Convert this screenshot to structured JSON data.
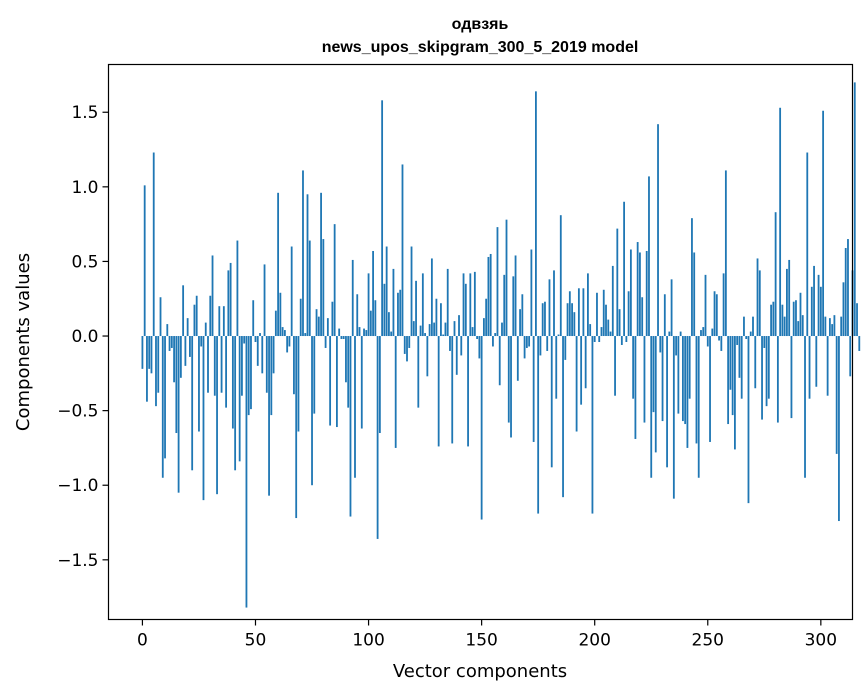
{
  "chart_data": {
    "type": "bar",
    "title_line1": "одвзяь",
    "title_line2": "news_upos_skipgram_300_5_2019 model",
    "xlabel": "Vector components",
    "ylabel": "Components values",
    "xlim": [
      -15,
      314
    ],
    "ylim": [
      -1.9,
      1.82
    ],
    "x_ticks": [
      0,
      50,
      100,
      150,
      200,
      250,
      300
    ],
    "y_ticks": [
      -1.5,
      -1.0,
      -0.5,
      0.0,
      0.5,
      1.0,
      1.5
    ],
    "x_tick_labels": [
      "0",
      "50",
      "100",
      "150",
      "200",
      "250",
      "300"
    ],
    "y_tick_labels": [
      "−1.5",
      "−1.0",
      "−0.5",
      "0.0",
      "0.5",
      "1.0",
      "1.5"
    ],
    "bar_color": "#1f77b4",
    "grid": false,
    "values": [
      -0.22,
      1.01,
      -0.44,
      -0.22,
      -0.25,
      1.23,
      -0.47,
      -0.38,
      0.26,
      -0.95,
      -0.82,
      0.08,
      -0.1,
      -0.08,
      -0.31,
      -0.65,
      -1.05,
      -0.28,
      0.34,
      -0.2,
      0.12,
      -0.14,
      -0.9,
      0.21,
      0.27,
      -0.64,
      -0.07,
      -1.1,
      0.09,
      -0.38,
      0.27,
      0.54,
      -0.4,
      -1.06,
      0.2,
      -0.38,
      0.2,
      -0.48,
      0.44,
      0.49,
      -0.62,
      -0.9,
      0.64,
      -0.84,
      -0.4,
      -0.05,
      -1.82,
      -0.53,
      -0.49,
      0.24,
      -0.04,
      -0.2,
      0.02,
      -0.25,
      0.48,
      -0.38,
      -1.07,
      -0.53,
      -0.25,
      0.17,
      0.96,
      0.29,
      0.06,
      0.04,
      -0.11,
      -0.07,
      0.6,
      -0.39,
      -1.22,
      -0.64,
      0.25,
      1.11,
      0.02,
      0.95,
      0.64,
      -1.0,
      -0.52,
      0.18,
      0.13,
      0.96,
      0.65,
      -0.08,
      0.12,
      -0.6,
      0.23,
      0.75,
      -0.61,
      0.05,
      -0.02,
      -0.02,
      -0.31,
      -0.48,
      -1.21,
      0.51,
      -0.95,
      0.28,
      0.06,
      -0.62,
      0.05,
      0.04,
      0.42,
      0.17,
      0.57,
      0.24,
      -1.36,
      -0.65,
      1.58,
      0.35,
      0.6,
      0.16,
      0.03,
      0.45,
      -0.75,
      0.29,
      0.31,
      1.15,
      -0.12,
      -0.17,
      -0.08,
      0.6,
      0.1,
      0.37,
      -0.48,
      0.07,
      0.42,
      0.02,
      -0.27,
      0.08,
      0.52,
      0.09,
      0.25,
      -0.74,
      0.22,
      0.01,
      0.09,
      0.45,
      -0.1,
      -0.72,
      0.1,
      -0.26,
      0.14,
      -0.13,
      0.42,
      0.35,
      -0.74,
      0.42,
      0.06,
      0.43,
      -0.02,
      -0.15,
      -1.23,
      0.12,
      0.25,
      0.53,
      0.55,
      -0.07,
      0.02,
      0.73,
      -0.33,
      0.09,
      0.41,
      0.78,
      -0.58,
      -0.68,
      0.4,
      0.54,
      -0.3,
      0.18,
      0.28,
      -0.15,
      -0.08,
      -0.07,
      0.58,
      -0.71,
      1.64,
      -1.19,
      -0.13,
      0.22,
      0.23,
      -0.1,
      0.38,
      -0.88,
      0.44,
      -0.42,
      0.01,
      0.81,
      -1.08,
      -0.16,
      0.22,
      0.3,
      0.22,
      0.16,
      -0.64,
      0.32,
      -0.46,
      0.32,
      -0.35,
      0.42,
      0.08,
      -1.19,
      -0.04,
      0.29,
      -0.04,
      0.06,
      0.31,
      0.21,
      0.11,
      0.03,
      0.47,
      -0.4,
      0.72,
      0.18,
      -0.06,
      0.9,
      -0.04,
      0.3,
      0.58,
      -0.42,
      -0.69,
      0.63,
      0.56,
      0.26,
      -0.58,
      0.57,
      1.07,
      -0.95,
      -0.51,
      -0.78,
      1.42,
      -0.11,
      -0.57,
      0.28,
      -0.88,
      0.03,
      0.38,
      -1.09,
      -0.13,
      -0.52,
      0.03,
      -0.57,
      -0.59,
      -0.75,
      -0.42,
      0.79,
      0.56,
      -0.72,
      -0.95,
      0.04,
      0.06,
      0.41,
      -0.07,
      -0.71,
      0.05,
      0.3,
      0.28,
      -0.03,
      -0.1,
      0.42,
      1.11,
      -0.59,
      -0.36,
      -0.53,
      -0.76,
      -0.06,
      -0.28,
      -0.42,
      0.13,
      -0.02,
      -1.12,
      0.03,
      0.13,
      -0.35,
      0.52,
      0.44,
      -0.56,
      -0.08,
      -0.47,
      -0.42,
      0.21,
      0.23,
      0.83,
      -0.58,
      1.53,
      0.21,
      0.13,
      0.45,
      0.51,
      -0.55,
      0.23,
      0.24,
      0.1,
      0.29,
      0.14,
      -0.95,
      1.23,
      -0.42,
      0.33,
      0.47,
      -0.34,
      0.41,
      0.33,
      1.51,
      0.13,
      -0.4,
      0.12,
      0.08,
      0.14,
      -0.79,
      -1.24,
      0.13,
      0.36,
      0.59,
      0.65,
      -0.27,
      0.44,
      1.7,
      0.22,
      -0.1
    ]
  }
}
